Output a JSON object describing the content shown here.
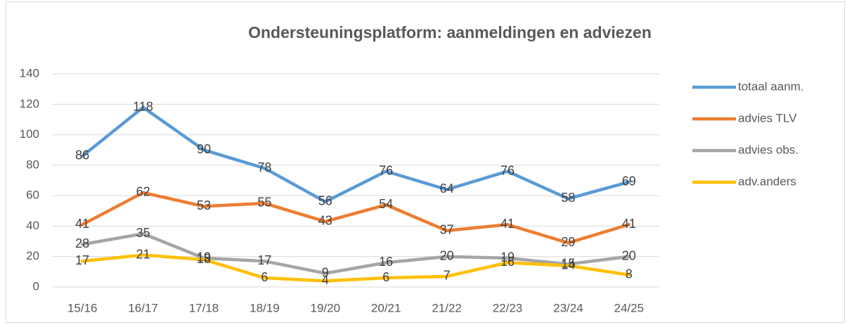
{
  "chart_data": {
    "type": "line",
    "title": "Ondersteuningsplatform: aanmeldingen en adviezen",
    "categories": [
      "15/16",
      "16/17",
      "17/18",
      "18/19",
      "19/20",
      "20/21",
      "21/22",
      "22/23",
      "23/24",
      "24/25"
    ],
    "series": [
      {
        "name": "totaal aanm.",
        "color": "#5B9BD5",
        "values": [
          86,
          118,
          90,
          78,
          56,
          76,
          64,
          76,
          58,
          69
        ]
      },
      {
        "name": "advies TLV",
        "color": "#ED7D31",
        "values": [
          41,
          62,
          53,
          55,
          43,
          54,
          37,
          41,
          29,
          41
        ]
      },
      {
        "name": "advies obs.",
        "color": "#A5A5A5",
        "values": [
          28,
          35,
          19,
          17,
          9,
          16,
          20,
          19,
          15,
          20
        ]
      },
      {
        "name": "adv.anders",
        "color": "#FFC000",
        "values": [
          17,
          21,
          18,
          6,
          4,
          6,
          7,
          16,
          14,
          8
        ]
      }
    ],
    "ylim": [
      0,
      140
    ],
    "yticks": [
      0,
      20,
      40,
      60,
      80,
      100,
      120,
      140
    ],
    "grid": true,
    "legend": "right"
  }
}
